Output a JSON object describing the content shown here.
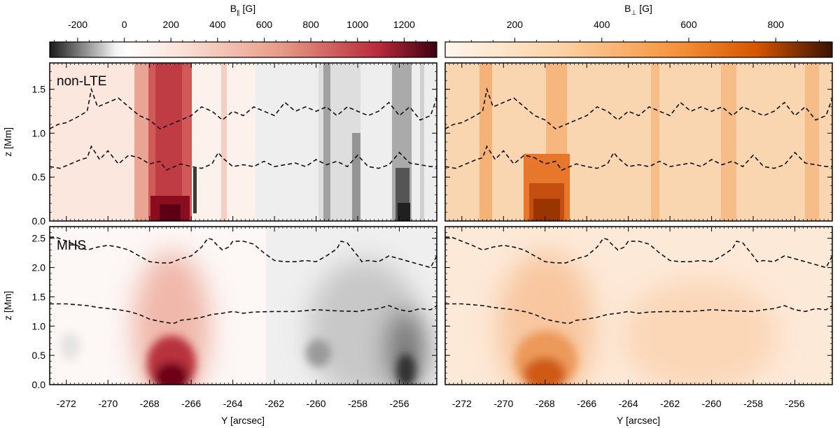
{
  "chart_data": {
    "type": "heatmap",
    "colorbars": [
      {
        "label_main": "B",
        "label_sub": "∥",
        "label_unit": " [G]",
        "ticks": [
          -200,
          0,
          200,
          400,
          600,
          800,
          1000,
          1200
        ],
        "range": [
          -320,
          1340
        ],
        "colormap": [
          "#1a1a1a",
          "#f3f3f3",
          "#ffffff",
          "#fbded3",
          "#e89a86",
          "#b82a3a",
          "#3d0012"
        ],
        "colormap_positions": [
          0,
          0.17,
          0.2,
          0.35,
          0.6,
          0.85,
          1
        ]
      },
      {
        "label_main": "B",
        "label_sub": "⊥",
        "label_unit": " [G]",
        "ticks": [
          200,
          400,
          600,
          800
        ],
        "range": [
          40,
          930
        ],
        "colormap": [
          "#fff6ee",
          "#fcd2a4",
          "#f6923c",
          "#d95600",
          "#3a1200"
        ],
        "colormap_positions": [
          0,
          0.3,
          0.6,
          0.8,
          1
        ]
      }
    ],
    "x_axis": {
      "label": "Y [arcsec]",
      "range": [
        -272.8,
        -254.2
      ],
      "ticks": [
        -272,
        -270,
        -268,
        -266,
        -264,
        -262,
        -260,
        -258,
        -256
      ]
    },
    "rows": [
      {
        "panel_label": "non-LTE",
        "ylabel": "z [Mm]",
        "ylim": [
          0,
          1.8
        ],
        "yticks": [
          "0.0",
          "0.5",
          "1.0",
          "1.5"
        ],
        "contours": [
          {
            "x": [
              -272.8,
              -272.4,
              -272,
              -271.5,
              -271,
              -270.8,
              -270.5,
              -270,
              -269.5,
              -269,
              -268.5,
              -268,
              -267.5,
              -267,
              -266.5,
              -266,
              -265.5,
              -265,
              -264.5,
              -264,
              -263.5,
              -263,
              -262.5,
              -262,
              -261.5,
              -261,
              -260.5,
              -260,
              -259.5,
              -259,
              -258.5,
              -258,
              -257.5,
              -257,
              -256.5,
              -256,
              -255.5,
              -255,
              -254.5,
              -254.2
            ],
            "z": [
              1.05,
              1.1,
              1.12,
              1.18,
              1.25,
              1.5,
              1.3,
              1.35,
              1.4,
              1.3,
              1.2,
              1.15,
              1.05,
              1.1,
              1.15,
              1.2,
              1.3,
              1.25,
              1.15,
              1.25,
              1.2,
              1.3,
              1.25,
              1.2,
              1.35,
              1.25,
              1.3,
              1.25,
              1.3,
              1.2,
              1.3,
              1.25,
              1.2,
              1.25,
              1.35,
              1.2,
              1.3,
              1.15,
              1.2,
              1.4
            ]
          },
          {
            "x": [
              -272.8,
              -272.3,
              -271.8,
              -271.3,
              -271,
              -270.8,
              -270.4,
              -270,
              -269.5,
              -269,
              -268.5,
              -268,
              -267.5,
              -267.2,
              -267,
              -266.5,
              -266,
              -265.5,
              -265,
              -264.7,
              -264.5,
              -264,
              -263.5,
              -263,
              -262.5,
              -262,
              -261.5,
              -261,
              -260.5,
              -260,
              -259.5,
              -259,
              -258.5,
              -258,
              -257.5,
              -257,
              -256.5,
              -256,
              -255.5,
              -255,
              -254.5,
              -254.2
            ],
            "z": [
              0.62,
              0.6,
              0.65,
              0.7,
              0.72,
              0.85,
              0.7,
              0.8,
              0.65,
              0.75,
              0.72,
              0.65,
              0.68,
              0.58,
              0.6,
              0.65,
              0.62,
              0.6,
              0.65,
              0.78,
              0.72,
              0.62,
              0.64,
              0.62,
              0.68,
              0.62,
              0.64,
              0.66,
              0.62,
              0.7,
              0.64,
              0.68,
              0.62,
              0.75,
              0.62,
              0.6,
              0.64,
              0.78,
              0.66,
              0.64,
              0.62,
              0.62
            ]
          }
        ]
      },
      {
        "panel_label": "MHS",
        "ylabel": "z [Mm]",
        "ylim": [
          0,
          2.7
        ],
        "yticks": [
          "0.0",
          "0.5",
          "1.0",
          "1.5",
          "2.0",
          "2.5"
        ],
        "contours": [
          {
            "x": [
              -272.8,
              -272.5,
              -272,
              -271.5,
              -271,
              -270.5,
              -270,
              -269.5,
              -269,
              -268.5,
              -268,
              -267.5,
              -267,
              -266.5,
              -266,
              -265.5,
              -265.2,
              -265,
              -264.8,
              -264.5,
              -264.2,
              -264,
              -263.5,
              -263,
              -262.5,
              -262,
              -261.5,
              -261,
              -260.5,
              -260,
              -259.5,
              -259,
              -258.8,
              -258.5,
              -258,
              -257.8,
              -257.5,
              -257,
              -256.5,
              -256,
              -255.5,
              -255,
              -254.5,
              -254.2
            ],
            "z": [
              2.52,
              2.52,
              2.45,
              2.38,
              2.3,
              2.35,
              2.38,
              2.35,
              2.3,
              2.2,
              2.1,
              2.08,
              2.08,
              2.15,
              2.2,
              2.35,
              2.5,
              2.48,
              2.4,
              2.3,
              2.35,
              2.45,
              2.45,
              2.4,
              2.25,
              2.12,
              2.1,
              2.1,
              2.12,
              2.1,
              2.2,
              2.32,
              2.45,
              2.42,
              2.2,
              2.1,
              2.12,
              2.1,
              2.2,
              2.15,
              2.1,
              2.05,
              2.0,
              2.2
            ]
          },
          {
            "x": [
              -272.8,
              -272,
              -271,
              -270.5,
              -270,
              -269.5,
              -269,
              -268.5,
              -268,
              -267.5,
              -267,
              -266.8,
              -266.5,
              -266,
              -265.5,
              -265,
              -264.5,
              -264,
              -263.5,
              -263,
              -262,
              -261,
              -260,
              -259,
              -258,
              -257.5,
              -257,
              -256.5,
              -256,
              -255.5,
              -255,
              -254.5,
              -254.2
            ],
            "z": [
              1.38,
              1.38,
              1.35,
              1.32,
              1.3,
              1.28,
              1.25,
              1.2,
              1.12,
              1.08,
              1.05,
              1.05,
              1.1,
              1.12,
              1.15,
              1.2,
              1.22,
              1.25,
              1.22,
              1.24,
              1.25,
              1.25,
              1.28,
              1.26,
              1.25,
              1.28,
              1.3,
              1.35,
              1.28,
              1.25,
              1.3,
              1.28,
              1.35
            ]
          }
        ]
      }
    ]
  }
}
